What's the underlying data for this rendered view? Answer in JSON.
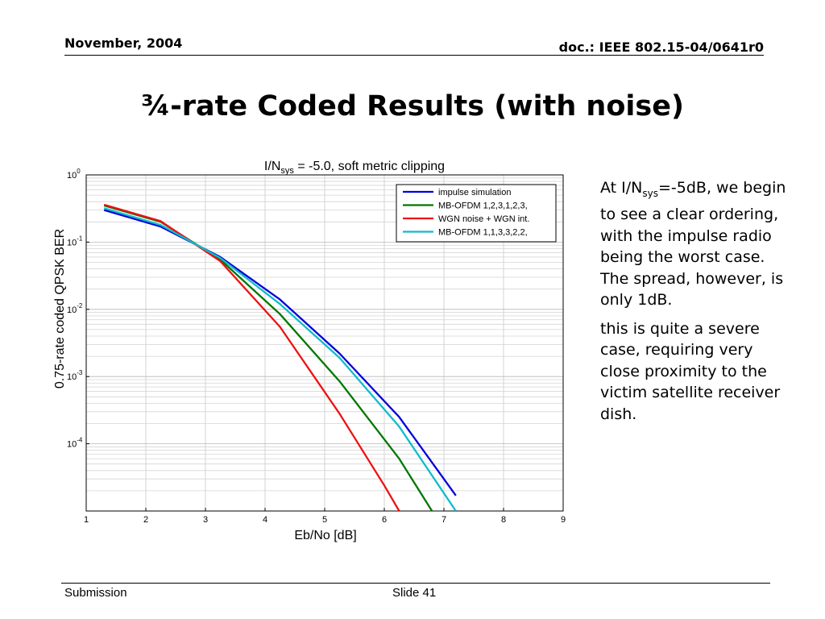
{
  "header": {
    "date": "November, 2004",
    "doc": "doc.: IEEE 802.15-04/0641r0"
  },
  "slide": {
    "title": "¾-rate Coded Results (with noise)"
  },
  "side_text": {
    "p1_pre": "At I/N",
    "p1_sub": "sys",
    "p1_post": "=-5dB, we begin to see a clear ordering, with the impulse radio being the worst case. The spread, however, is only 1dB.",
    "p2": "this is quite a severe case, requiring very close proximity to the victim satellite receiver dish."
  },
  "footer": {
    "left": "Submission",
    "center": "Slide 41"
  },
  "chart_data": {
    "type": "line",
    "title_pre": "I/N",
    "title_sub": "sys",
    "title_post": " = -5.0, soft metric clipping",
    "xlabel": "Eb/No [dB]",
    "ylabel": "0.75-rate coded QPSK BER",
    "xlim": [
      1,
      9
    ],
    "ylim": [
      1e-05,
      1
    ],
    "y_scale": "log",
    "grid": true,
    "legend_position": "top-right",
    "x_ticks": [
      "1",
      "2",
      "3",
      "4",
      "5",
      "6",
      "7",
      "8",
      "9"
    ],
    "y_ticks": [
      {
        "base": "10",
        "exp": "0"
      },
      {
        "base": "10",
        "exp": "-1"
      },
      {
        "base": "10",
        "exp": "-2"
      },
      {
        "base": "10",
        "exp": "-3"
      },
      {
        "base": "10",
        "exp": "-4"
      }
    ],
    "series": [
      {
        "name": "impulse simulation",
        "color": "#0000dd",
        "x": [
          1.3,
          2.25,
          3.25,
          4.25,
          5.25,
          6.25,
          7.2
        ],
        "y": [
          0.3,
          0.17,
          0.06,
          0.014,
          0.0022,
          0.00025,
          1.7e-05
        ]
      },
      {
        "name": "MB-OFDM 1,2,3,1,2,3,",
        "color": "#007700",
        "x": [
          1.3,
          2.25,
          3.25,
          4.25,
          5.25,
          6.25,
          6.8
        ],
        "y": [
          0.35,
          0.2,
          0.055,
          0.0085,
          0.00085,
          6e-05,
          1e-05
        ]
      },
      {
        "name": "WGN noise + WGN int.",
        "color": "#ee1111",
        "x": [
          1.3,
          2.25,
          3.25,
          4.25,
          5.25,
          6.0,
          6.25
        ],
        "y": [
          0.36,
          0.205,
          0.052,
          0.0055,
          0.00028,
          2.4e-05,
          1e-05
        ]
      },
      {
        "name": "MB-OFDM 1,1,3,3,2,2,",
        "color": "#11bbcc",
        "x": [
          1.3,
          2.25,
          3.25,
          4.25,
          5.25,
          6.25,
          7.2
        ],
        "y": [
          0.32,
          0.18,
          0.058,
          0.012,
          0.0019,
          0.00018,
          1e-05
        ]
      }
    ]
  }
}
